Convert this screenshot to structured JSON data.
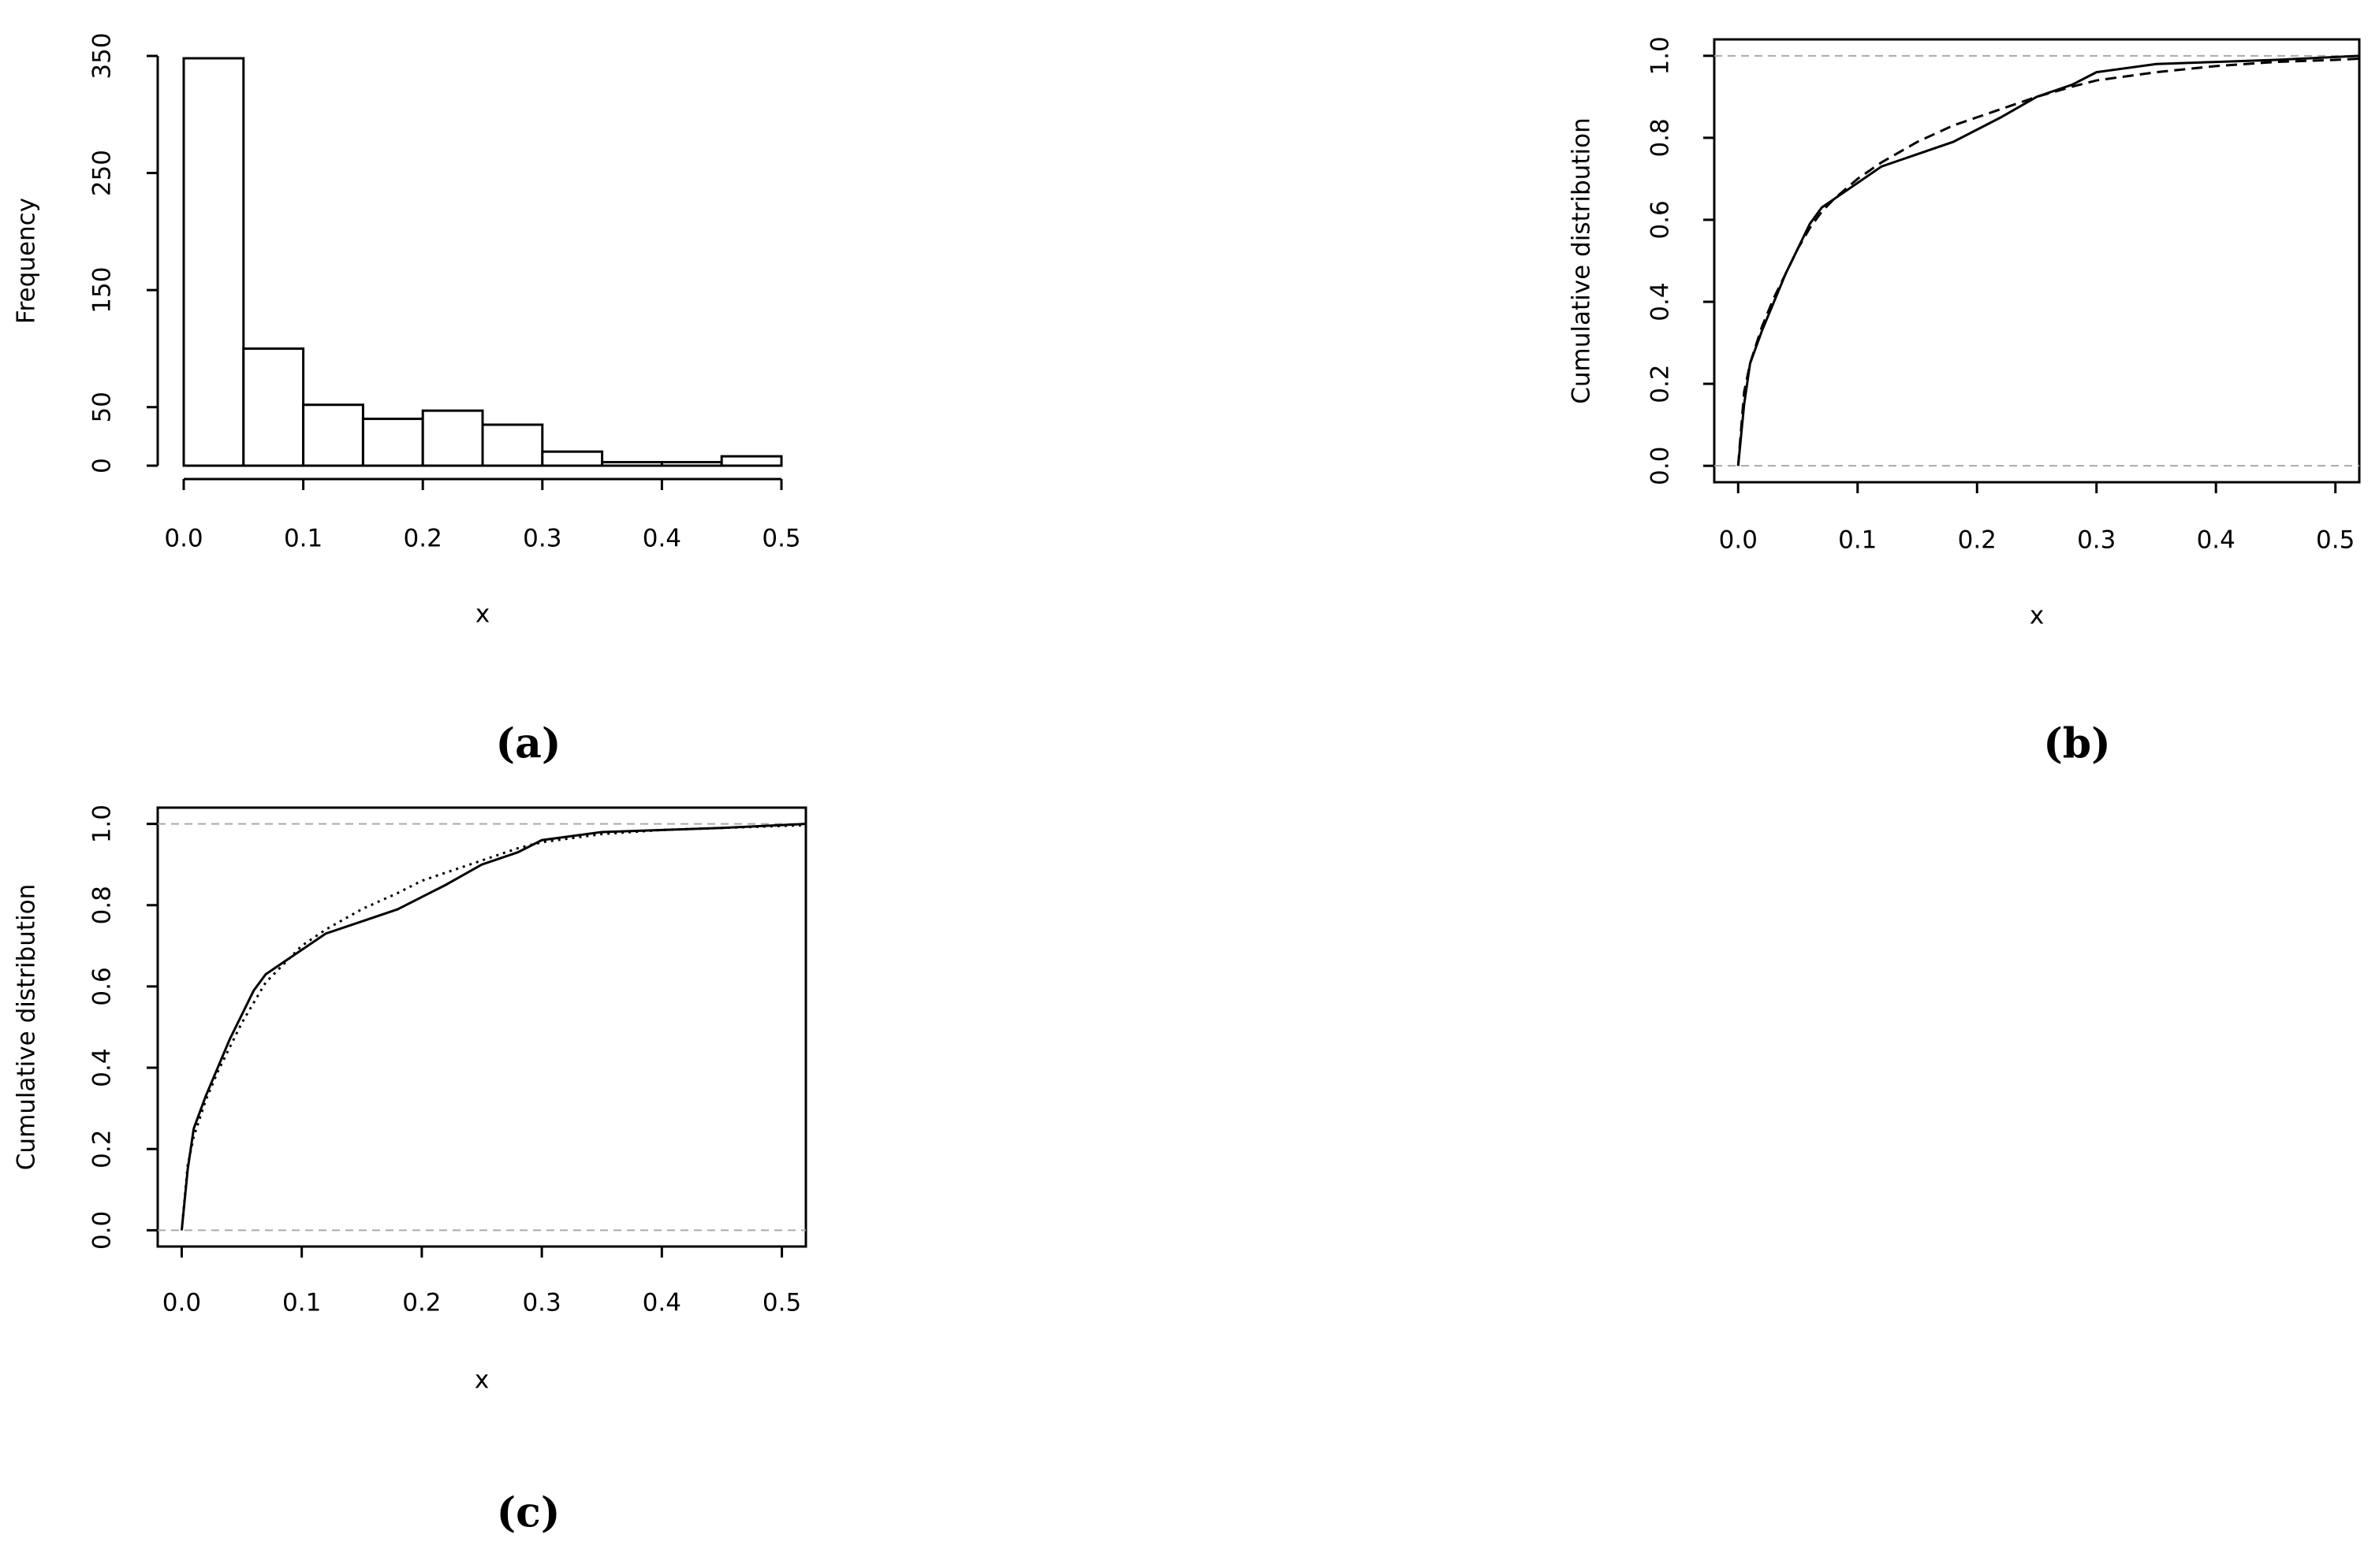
{
  "chart_data": [
    {
      "type": "histogram",
      "caption": "(a)",
      "xlabel": "x",
      "ylabel": "Frequency",
      "bins": [
        0,
        0.05,
        0.1,
        0.15,
        0.2,
        0.25,
        0.3,
        0.35,
        0.4,
        0.45,
        0.5
      ],
      "values": [
        348,
        100,
        52,
        40,
        47,
        35,
        12,
        3,
        3,
        8
      ],
      "color": "#ffffff",
      "xlim": [
        0,
        0.5
      ],
      "ylim": [
        0,
        350
      ],
      "xticks": [
        {
          "value": 0,
          "label": "0.0"
        },
        0.1,
        0.2,
        0.3,
        0.4,
        0.5
      ],
      "yticks": [
        0,
        50,
        150,
        250,
        350
      ]
    },
    {
      "type": "line",
      "caption": "(b)",
      "xlabel": "x",
      "ylabel": "Cumulative distribution",
      "box": true,
      "reference_lines": [
        0,
        1
      ],
      "x": [
        0,
        0.005,
        0.01,
        0.02,
        0.03,
        0.04,
        0.05,
        0.06,
        0.07,
        0.08,
        0.1,
        0.12,
        0.15,
        0.18,
        0.2,
        0.22,
        0.25,
        0.28,
        0.3,
        0.35,
        0.4,
        0.45,
        0.5,
        0.52
      ],
      "series": [
        {
          "color": "#000000",
          "dash": "solid",
          "values": [
            0,
            0.15,
            0.25,
            0.33,
            0.4,
            0.47,
            0.53,
            0.59,
            0.63,
            0.65,
            0.69,
            0.73,
            0.76,
            0.79,
            0.82,
            0.85,
            0.9,
            0.93,
            0.96,
            0.98,
            0.985,
            0.99,
            0.997,
            1
          ]
        },
        {
          "color": "#000000",
          "dash": "dashed",
          "values": [
            0,
            0.18,
            0.25,
            0.34,
            0.41,
            0.47,
            0.53,
            0.58,
            0.62,
            0.65,
            0.7,
            0.74,
            0.79,
            0.83,
            0.85,
            0.87,
            0.9,
            0.925,
            0.94,
            0.96,
            0.975,
            0.985,
            0.99,
            0.993
          ]
        }
      ],
      "xlim": [
        -0.02,
        0.52
      ],
      "ylim": [
        -0.04,
        1.04
      ],
      "xticks": [
        {
          "value": 0,
          "label": "0.0"
        },
        0.1,
        0.2,
        0.3,
        0.4,
        0.5
      ],
      "yticks": [
        {
          "value": 0,
          "label": "0.0"
        },
        0.2,
        0.4,
        0.6,
        0.8,
        {
          "value": 1,
          "label": "1.0"
        }
      ]
    },
    {
      "type": "line",
      "caption": "(c)",
      "xlabel": "x",
      "ylabel": "Cumulative distribution",
      "box": true,
      "reference_lines": [
        0,
        1
      ],
      "x": [
        0,
        0.005,
        0.01,
        0.02,
        0.03,
        0.04,
        0.05,
        0.06,
        0.07,
        0.08,
        0.1,
        0.12,
        0.15,
        0.18,
        0.2,
        0.22,
        0.25,
        0.28,
        0.3,
        0.35,
        0.4,
        0.45,
        0.5,
        0.52
      ],
      "series": [
        {
          "color": "#000000",
          "dash": "solid",
          "values": [
            0,
            0.15,
            0.25,
            0.33,
            0.4,
            0.47,
            0.53,
            0.59,
            0.63,
            0.65,
            0.69,
            0.73,
            0.76,
            0.79,
            0.82,
            0.85,
            0.9,
            0.93,
            0.96,
            0.98,
            0.985,
            0.99,
            0.997,
            1
          ]
        },
        {
          "color": "#000000",
          "dash": "dotted",
          "values": [
            0,
            0.16,
            0.23,
            0.32,
            0.39,
            0.45,
            0.51,
            0.56,
            0.61,
            0.64,
            0.7,
            0.74,
            0.79,
            0.83,
            0.86,
            0.88,
            0.91,
            0.94,
            0.955,
            0.975,
            0.985,
            0.99,
            0.995,
            0.997
          ]
        }
      ],
      "xlim": [
        -0.02,
        0.52
      ],
      "ylim": [
        -0.04,
        1.04
      ],
      "xticks": [
        {
          "value": 0,
          "label": "0.0"
        },
        0.1,
        0.2,
        0.3,
        0.4,
        0.5
      ],
      "yticks": [
        {
          "value": 0,
          "label": "0.0"
        },
        0.2,
        0.4,
        0.6,
        0.8,
        {
          "value": 1,
          "label": "1.0"
        }
      ]
    }
  ]
}
